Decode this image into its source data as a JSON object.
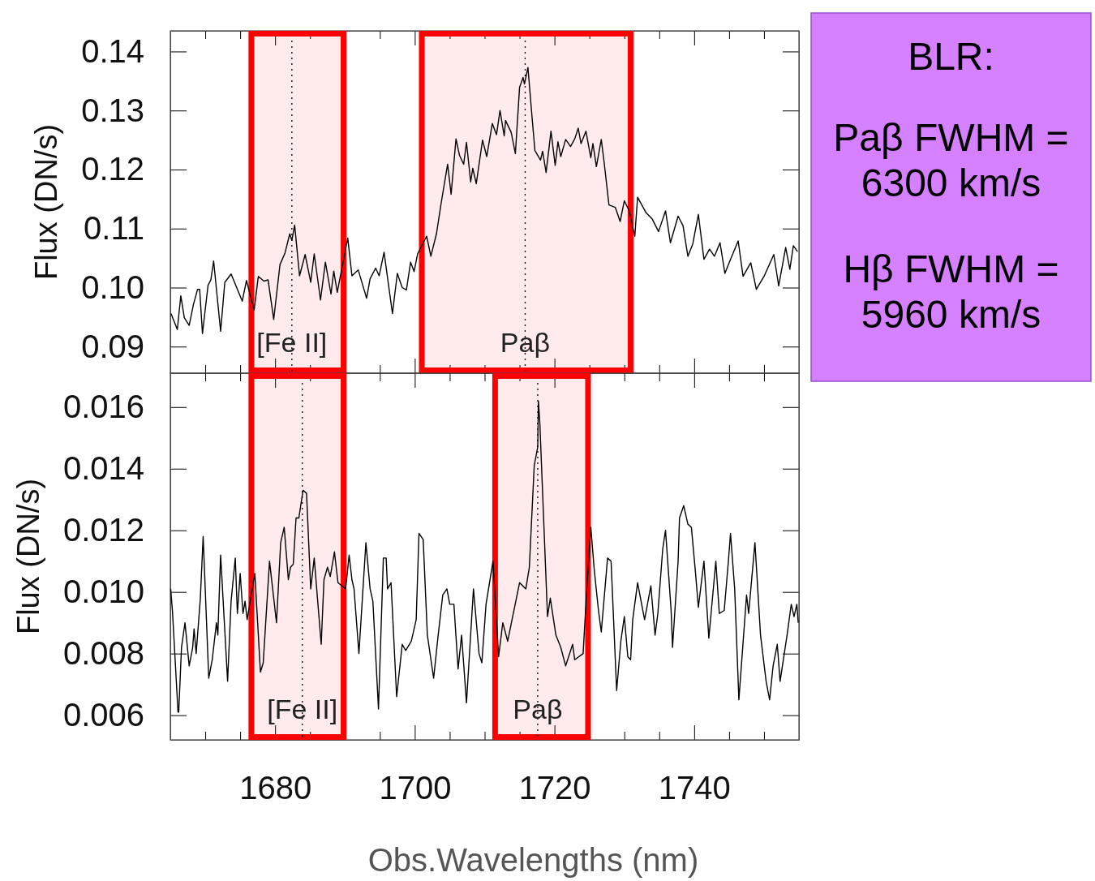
{
  "chart_data": [
    {
      "type": "line",
      "ylabel": "Flux (DN/s)",
      "tick_labels": "y",
      "xlim": [
        1665,
        1755
      ],
      "ylim": [
        0.0855,
        0.1435
      ],
      "xticks": [
        1680,
        1700,
        1720,
        1740,
        {
          "value": 1670,
          "label": null
        },
        {
          "value": 1675,
          "label": null
        },
        {
          "value": 1685,
          "label": null
        },
        {
          "value": 1690,
          "label": null
        },
        {
          "value": 1695,
          "label": null
        },
        {
          "value": 1705,
          "label": null
        },
        {
          "value": 1710,
          "label": null
        },
        {
          "value": 1715,
          "label": null
        },
        {
          "value": 1725,
          "label": null
        },
        {
          "value": 1730,
          "label": null
        },
        {
          "value": 1735,
          "label": null
        },
        {
          "value": 1745,
          "label": null
        },
        {
          "value": 1750,
          "label": null
        }
      ],
      "yticks": [
        0.09,
        {
          "value": 0.1,
          "label": "0.10"
        },
        0.11,
        0.12,
        0.13,
        0.14
      ],
      "annotations": [
        "BLR:",
        "Paβ FWHM = 6300 km/s",
        "Hβ FWHM = 5960 km/s"
      ],
      "ref_lines": [
        {
          "axis": "x",
          "value": 1682.4,
          "label": "[Fe II]",
          "line_style": "dotted"
        },
        {
          "axis": "x",
          "value": 1715.8,
          "label": "Paβ",
          "line_style": "dotted"
        }
      ],
      "bands": [
        {
          "axis": "x",
          "from": 1676.6,
          "to": 1689.8,
          "color": "#ff0000"
        },
        {
          "axis": "x",
          "from": 1701.0,
          "to": 1730.9,
          "color": "#ff0000"
        }
      ],
      "series": [
        {
          "color": "#000000",
          "x": [
            1665.1,
            1666.0,
            1666.5,
            1667.0,
            1667.7,
            1668.3,
            1668.9,
            1669.2,
            1669.6,
            1670.4,
            1670.8,
            1671.2,
            1672.2,
            1672.8,
            1673.7,
            1674.5,
            1675.3,
            1675.9,
            1677.0,
            1677.6,
            1678.4,
            1679.0,
            1679.8,
            1680.7,
            1681.4,
            1682.1,
            1682.4,
            1682.8,
            1683.5,
            1684.3,
            1685.1,
            1685.6,
            1686.5,
            1687.2,
            1688.0,
            1688.4,
            1688.9,
            1690.4,
            1691.0,
            1691.9,
            1693.1,
            1693.6,
            1694.4,
            1694.9,
            1695.6,
            1696.8,
            1697.5,
            1698.2,
            1698.8,
            1699.4,
            1699.9,
            1700.4,
            1701.7,
            1702.3,
            1703.1,
            1703.8,
            1704.7,
            1705.2,
            1705.9,
            1706.4,
            1707.0,
            1707.4,
            1708.0,
            1708.3,
            1708.8,
            1709.7,
            1710.3,
            1711.1,
            1711.7,
            1712.2,
            1712.8,
            1713.0,
            1713.8,
            1714.4,
            1715.0,
            1715.5,
            1715.7,
            1716.2,
            1716.8,
            1717.2,
            1718.0,
            1718.3,
            1718.8,
            1719.5,
            1720.1,
            1720.5,
            1720.9,
            1721.6,
            1722.3,
            1722.9,
            1723.4,
            1723.8,
            1724.5,
            1725.2,
            1725.5,
            1726.0,
            1726.7,
            1727.1,
            1727.8,
            1728.7,
            1729.4,
            1730.0,
            1730.7,
            1731.5,
            1731.9,
            1733.1,
            1734.0,
            1734.9,
            1735.9,
            1736.6,
            1737.7,
            1738.4,
            1739.1,
            1739.8,
            1740.6,
            1741.4,
            1742.2,
            1742.9,
            1743.7,
            1744.4,
            1745.0,
            1746.3,
            1747.0,
            1748.1,
            1748.9,
            1750.0,
            1751.4,
            1752.1,
            1753.1,
            1753.7,
            1754.2,
            1754.8
          ],
          "values": [
            0.0956,
            0.0929,
            0.0986,
            0.0949,
            0.0936,
            0.0971,
            0.0997,
            0.0997,
            0.0922,
            0.1004,
            0.1013,
            0.1045,
            0.0926,
            0.1009,
            0.1023,
            0.1,
            0.0977,
            0.1012,
            0.0962,
            0.1019,
            0.1011,
            0.1013,
            0.0946,
            0.1039,
            0.1058,
            0.1091,
            0.108,
            0.1106,
            0.102,
            0.1056,
            0.1009,
            0.1057,
            0.0979,
            0.1043,
            0.0989,
            0.1028,
            0.0992,
            0.1084,
            0.102,
            0.103,
            0.0982,
            0.1015,
            0.1033,
            0.102,
            0.106,
            0.0956,
            0.1024,
            0.1,
            0.0996,
            0.1043,
            0.1027,
            0.1057,
            0.1087,
            0.1053,
            0.1091,
            0.1145,
            0.1209,
            0.1158,
            0.1252,
            0.1224,
            0.1209,
            0.1246,
            0.1179,
            0.1202,
            0.1176,
            0.125,
            0.1222,
            0.1278,
            0.1259,
            0.13,
            0.1257,
            0.1283,
            0.1263,
            0.1227,
            0.1339,
            0.1356,
            0.1345,
            0.1373,
            0.1287,
            0.1232,
            0.1216,
            0.1231,
            0.1195,
            0.1265,
            0.1207,
            0.1247,
            0.1222,
            0.1251,
            0.1239,
            0.1252,
            0.127,
            0.1244,
            0.1265,
            0.122,
            0.1244,
            0.1205,
            0.1251,
            0.1213,
            0.114,
            0.1136,
            0.1112,
            0.1147,
            0.113,
            0.1087,
            0.1153,
            0.1127,
            0.1116,
            0.1095,
            0.113,
            0.1076,
            0.1121,
            0.1105,
            0.1053,
            0.1074,
            0.1124,
            0.1048,
            0.1065,
            0.1053,
            0.1076,
            0.1024,
            0.1042,
            0.1079,
            0.1019,
            0.1042,
            0.0997,
            0.1019,
            0.1056,
            0.1003,
            0.1068,
            0.1031,
            0.1071,
            0.1061
          ]
        }
      ]
    },
    {
      "type": "line",
      "ylabel": "Flux (DN/s)",
      "xlabel": "Obs.Wavelengths (nm)",
      "xlim": [
        1665,
        1755
      ],
      "ylim": [
        0.0052,
        0.0171
      ],
      "xticks": [
        1680,
        1700,
        1720,
        1740,
        {
          "value": 1670,
          "label": null
        },
        {
          "value": 1675,
          "label": null
        },
        {
          "value": 1685,
          "label": null
        },
        {
          "value": 1690,
          "label": null
        },
        {
          "value": 1695,
          "label": null
        },
        {
          "value": 1705,
          "label": null
        },
        {
          "value": 1710,
          "label": null
        },
        {
          "value": 1715,
          "label": null
        },
        {
          "value": 1725,
          "label": null
        },
        {
          "value": 1730,
          "label": null
        },
        {
          "value": 1735,
          "label": null
        },
        {
          "value": 1745,
          "label": null
        },
        {
          "value": 1750,
          "label": null
        }
      ],
      "yticks": [
        0.006,
        0.008,
        {
          "value": 0.01,
          "label": "0.010"
        },
        0.012,
        0.014,
        0.016
      ],
      "ref_lines": [
        {
          "axis": "x",
          "value": 1683.9,
          "label": "[Fe II]",
          "line_style": "dotted"
        },
        {
          "axis": "x",
          "value": 1717.6,
          "label": "Paβ",
          "line_style": "dotted"
        }
      ],
      "bands": [
        {
          "axis": "x",
          "from": 1676.6,
          "to": 1689.8,
          "color": "#ff0000"
        },
        {
          "axis": "x",
          "from": 1711.5,
          "to": 1724.8,
          "color": "#ff0000"
        }
      ],
      "series": [
        {
          "color": "#000000",
          "x": [
            1665.05,
            1665.3,
            1666.1,
            1666.2,
            1666.6,
            1667.1,
            1667.7,
            1668.2,
            1668.4,
            1668.7,
            1669.3,
            1669.7,
            1670.5,
            1671.0,
            1671.6,
            1671.8,
            1672.2,
            1673.2,
            1673.7,
            1674.3,
            1674.6,
            1675.0,
            1675.4,
            1675.7,
            1676.0,
            1677.1,
            1677.9,
            1678.3,
            1679.2,
            1680.2,
            1680.8,
            1681.3,
            1681.9,
            1682.2,
            1682.6,
            1683.0,
            1683.4,
            1684.0,
            1684.5,
            1685.1,
            1685.6,
            1686.6,
            1687.0,
            1687.5,
            1687.9,
            1688.5,
            1689.0,
            1690.1,
            1690.6,
            1691.0,
            1691.3,
            1691.7,
            1692.0,
            1693.0,
            1693.6,
            1694.0,
            1694.8,
            1695.5,
            1695.9,
            1696.1,
            1696.6,
            1697.4,
            1698.2,
            1698.7,
            1699.5,
            1700.2,
            1700.6,
            1701.2,
            1701.8,
            1702.7,
            1703.3,
            1704.0,
            1704.6,
            1705.0,
            1705.6,
            1706.2,
            1706.7,
            1707.4,
            1708.4,
            1709.2,
            1709.6,
            1710.2,
            1711.2,
            1712.0,
            1712.6,
            1713.3,
            1714.1,
            1715.0,
            1715.9,
            1716.4,
            1717.1,
            1717.6,
            1717.7,
            1717.9,
            1719.0,
            1719.4,
            1720.2,
            1720.9,
            1721.6,
            1722.6,
            1722.9,
            1724.1,
            1724.6,
            1725.2,
            1725.7,
            1726.3,
            1726.7,
            1727.6,
            1728.1,
            1728.9,
            1729.5,
            1730.0,
            1730.5,
            1730.9,
            1731.2,
            1731.9,
            1732.9,
            1733.8,
            1734.4,
            1734.8,
            1735.5,
            1735.9,
            1736.7,
            1736.9,
            1737.7,
            1737.9,
            1738.5,
            1739.1,
            1739.6,
            1740.2,
            1740.6,
            1741.4,
            1742.1,
            1743.1,
            1743.6,
            1744.3,
            1744.9,
            1745.2,
            1745.8,
            1746.4,
            1747.5,
            1747.8,
            1748.7,
            1749.5,
            1750.3,
            1750.8,
            1751.3,
            1751.9,
            1752.3,
            1753.3,
            1753.9,
            1754.3,
            1754.7,
            1754.9
          ],
          "values": [
            0.0101,
            0.0094,
            0.0061,
            0.0061,
            0.0082,
            0.009,
            0.0076,
            0.0082,
            0.0088,
            0.008,
            0.0098,
            0.0118,
            0.0072,
            0.0078,
            0.009,
            0.0086,
            0.0112,
            0.0071,
            0.0097,
            0.0111,
            0.0093,
            0.0106,
            0.0093,
            0.0097,
            0.0091,
            0.0106,
            0.0074,
            0.0077,
            0.011,
            0.009,
            0.0116,
            0.0121,
            0.0104,
            0.0108,
            0.0109,
            0.0124,
            0.0124,
            0.0133,
            0.0132,
            0.0101,
            0.0111,
            0.0083,
            0.0104,
            0.0108,
            0.0105,
            0.0113,
            0.0103,
            0.0101,
            0.0112,
            0.0104,
            0.0101,
            0.0089,
            0.008,
            0.0116,
            0.0101,
            0.0097,
            0.0062,
            0.0111,
            0.0111,
            0.0101,
            0.0103,
            0.0066,
            0.0083,
            0.0081,
            0.0084,
            0.0091,
            0.0119,
            0.0117,
            0.0086,
            0.0072,
            0.0085,
            0.0099,
            0.0101,
            0.0096,
            0.0096,
            0.0075,
            0.0086,
            0.0064,
            0.0101,
            0.008,
            0.0077,
            0.0096,
            0.011,
            0.0079,
            0.009,
            0.0084,
            0.0093,
            0.0103,
            0.0101,
            0.0108,
            0.0141,
            0.0147,
            0.0162,
            0.0155,
            0.0092,
            0.0098,
            0.0086,
            0.0082,
            0.0076,
            0.0083,
            0.0078,
            0.008,
            0.01,
            0.0121,
            0.0107,
            0.0094,
            0.0087,
            0.0111,
            0.011,
            0.0068,
            0.0084,
            0.0092,
            0.0079,
            0.0078,
            0.0091,
            0.0103,
            0.0091,
            0.0102,
            0.0086,
            0.0093,
            0.0114,
            0.012,
            0.0094,
            0.0082,
            0.011,
            0.0124,
            0.0128,
            0.0122,
            0.0121,
            0.0106,
            0.0095,
            0.011,
            0.0085,
            0.011,
            0.0093,
            0.0094,
            0.011,
            0.0119,
            0.0101,
            0.0065,
            0.0099,
            0.0093,
            0.0116,
            0.0086,
            0.0071,
            0.0065,
            0.0076,
            0.0083,
            0.0071,
            0.0086,
            0.0096,
            0.0092,
            0.0096,
            0.009
          ]
        }
      ]
    }
  ]
}
